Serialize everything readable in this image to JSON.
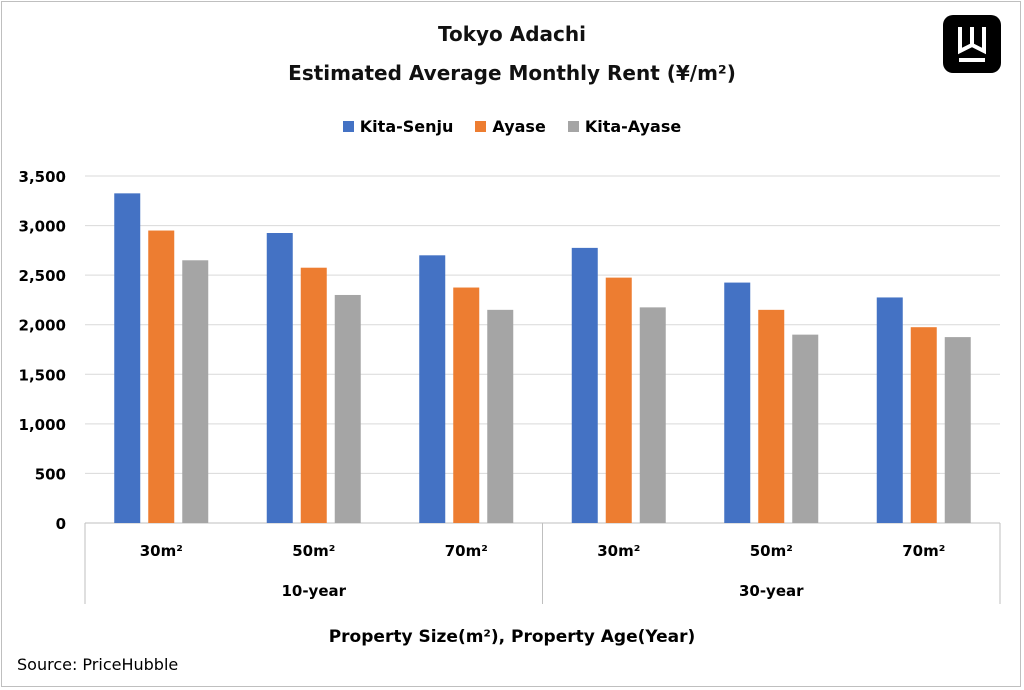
{
  "chart_data": {
    "type": "bar",
    "title": "Tokyo Adachi",
    "subtitle": "Estimated Average Monthly Rent (¥/m²)",
    "xlabel": "Property Size(m²), Property Age(Year)",
    "ylabel": "",
    "ylim": [
      0,
      3500
    ],
    "yticks": [
      "0",
      "500",
      "1,000",
      "1,500",
      "2,000",
      "2,500",
      "3,000",
      "3,500"
    ],
    "grid": true,
    "legend_position": "top-center",
    "groups": [
      {
        "label": "10-year",
        "categories": [
          "30m²",
          "50m²",
          "70m²"
        ]
      },
      {
        "label": "30-year",
        "categories": [
          "30m²",
          "50m²",
          "70m²"
        ]
      }
    ],
    "series": [
      {
        "name": "Kita-Senju",
        "color": "#4472C4",
        "values": [
          3325,
          2925,
          2700,
          2775,
          2425,
          2275
        ]
      },
      {
        "name": "Ayase",
        "color": "#ED7D31",
        "values": [
          2950,
          2575,
          2375,
          2475,
          2150,
          1975
        ]
      },
      {
        "name": "Kita-Ayase",
        "color": "#A5A5A5",
        "values": [
          2650,
          2300,
          2150,
          2175,
          1900,
          1875
        ]
      }
    ]
  },
  "source": "Source: PriceHubble",
  "logo_icon": "w-logo-icon"
}
